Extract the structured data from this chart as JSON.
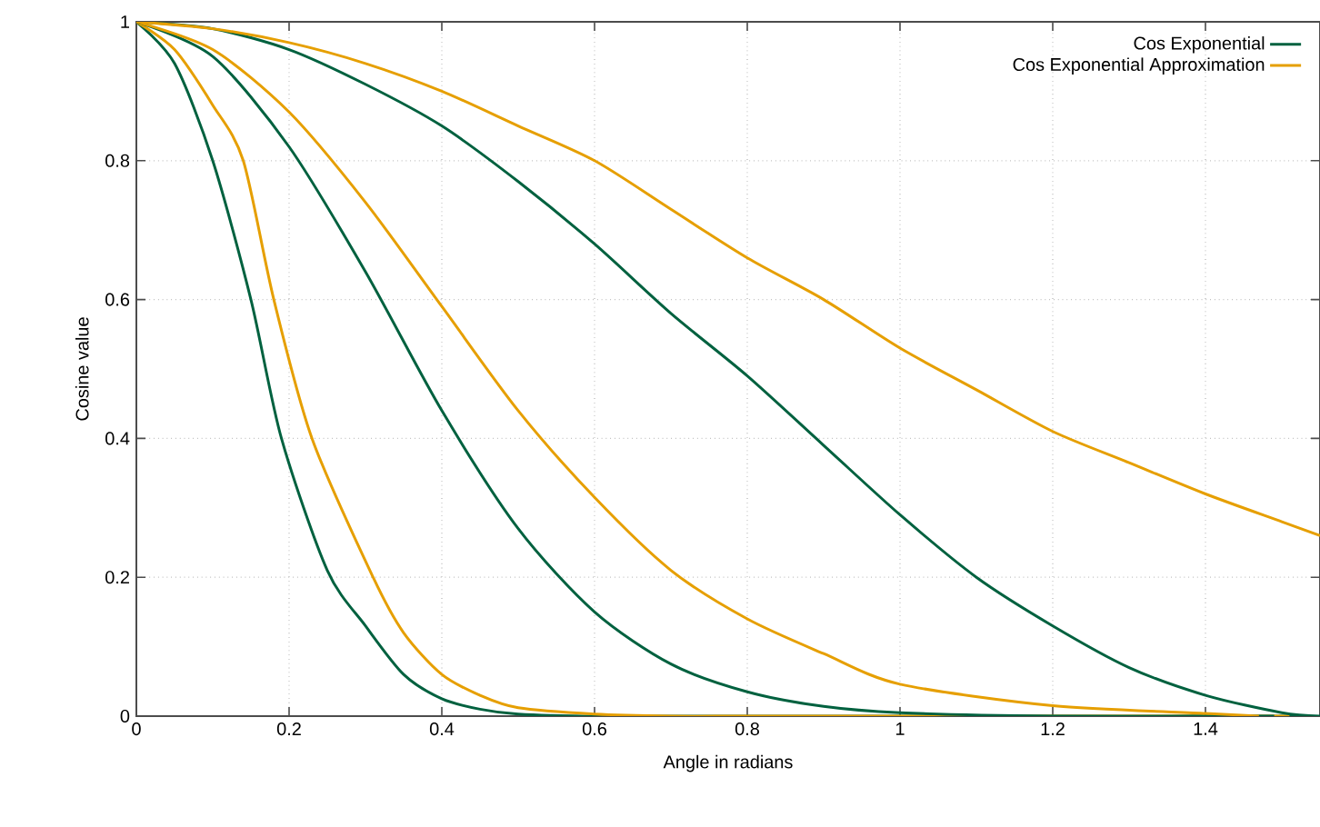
{
  "chart_data": {
    "type": "line",
    "xlabel": "Angle in radians",
    "ylabel": "Cosine value",
    "xlim": [
      0,
      1.55
    ],
    "ylim": [
      0,
      1
    ],
    "xticks": [
      0,
      0.2,
      0.4,
      0.6,
      0.8,
      1,
      1.2,
      1.4
    ],
    "yticks": [
      0,
      0.2,
      0.4,
      0.6,
      0.8,
      1
    ],
    "grid": true,
    "legend": "top right",
    "marker": "none",
    "line_style": "solid",
    "series": [
      {
        "name": "Cos Exponential",
        "color": "#00613f",
        "x": [
          0,
          0.05,
          0.1,
          0.15,
          0.19,
          0.25,
          0.3,
          0.35,
          0.4,
          0.45,
          0.5,
          0.6,
          0.8,
          1.0,
          1.2,
          1.4,
          1.53
        ],
        "values": [
          1,
          0.94,
          0.8,
          0.6,
          0.4,
          0.21,
          0.13,
          0.06,
          0.025,
          0.01,
          0.003,
          0,
          0,
          0,
          0,
          0,
          0
        ]
      },
      {
        "name": "Cos Exponential Approximation",
        "color": "#e69f00",
        "x": [
          0,
          0.05,
          0.1,
          0.14,
          0.18,
          0.23,
          0.31,
          0.35,
          0.4,
          0.45,
          0.5,
          0.6,
          0.7,
          0.8,
          1.0,
          1.2,
          1.4,
          1.51
        ],
        "values": [
          1,
          0.96,
          0.88,
          0.8,
          0.6,
          0.4,
          0.2,
          0.12,
          0.06,
          0.03,
          0.012,
          0.003,
          0,
          0,
          0,
          0,
          0,
          0
        ]
      },
      {
        "color": "#00613f",
        "x": [
          0,
          0.1,
          0.2,
          0.3,
          0.4,
          0.5,
          0.6,
          0.7,
          0.8,
          0.9,
          1.0,
          1.2,
          1.4,
          1.49
        ],
        "values": [
          1,
          0.95,
          0.82,
          0.64,
          0.44,
          0.27,
          0.15,
          0.075,
          0.035,
          0.014,
          0.005,
          0,
          0,
          0
        ]
      },
      {
        "color": "#e69f00",
        "x": [
          0,
          0.1,
          0.2,
          0.3,
          0.4,
          0.5,
          0.6,
          0.7,
          0.8,
          0.9,
          1.0,
          1.2,
          1.4,
          1.47
        ],
        "values": [
          1,
          0.96,
          0.87,
          0.74,
          0.59,
          0.44,
          0.315,
          0.21,
          0.14,
          0.09,
          0.046,
          0.015,
          0.004,
          0
        ]
      },
      {
        "color": "#00613f",
        "x": [
          0,
          0.1,
          0.2,
          0.3,
          0.4,
          0.5,
          0.6,
          0.7,
          0.8,
          0.9,
          1.0,
          1.1,
          1.2,
          1.3,
          1.4,
          1.5,
          1.55
        ],
        "values": [
          1,
          0.99,
          0.96,
          0.91,
          0.85,
          0.77,
          0.68,
          0.58,
          0.49,
          0.39,
          0.29,
          0.2,
          0.13,
          0.07,
          0.03,
          0.005,
          0
        ]
      },
      {
        "color": "#e69f00",
        "x": [
          0,
          0.1,
          0.2,
          0.3,
          0.4,
          0.5,
          0.6,
          0.7,
          0.8,
          0.9,
          1.0,
          1.1,
          1.2,
          1.3,
          1.4,
          1.5,
          1.55
        ],
        "values": [
          1,
          0.99,
          0.97,
          0.94,
          0.9,
          0.85,
          0.8,
          0.73,
          0.66,
          0.6,
          0.53,
          0.47,
          0.41,
          0.365,
          0.32,
          0.28,
          0.26
        ]
      }
    ]
  }
}
